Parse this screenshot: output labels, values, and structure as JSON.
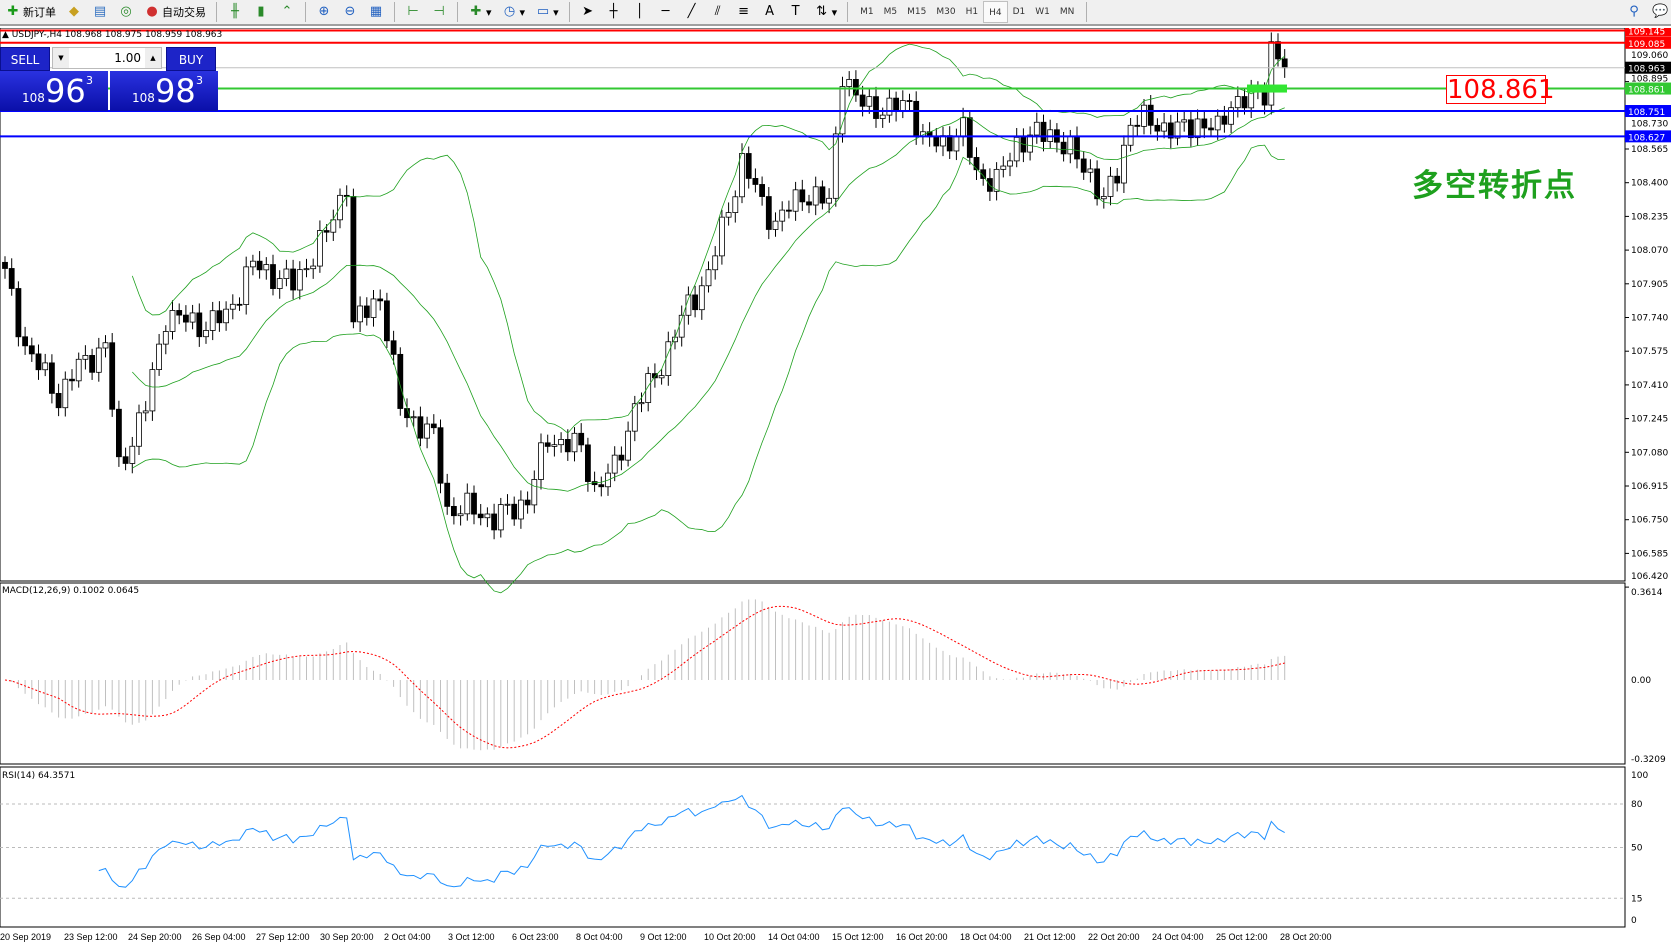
{
  "toolbar": {
    "new_order": "新订单",
    "auto_trading": "自动交易",
    "timeframes": [
      "M1",
      "M5",
      "M15",
      "M30",
      "H1",
      "H4",
      "D1",
      "W1",
      "MN"
    ],
    "active_timeframe": "H4"
  },
  "chart": {
    "symbol_header": "USDJPY-,H4  108.968 108.975 108.959 108.963",
    "annotation_price": "108.861",
    "annotation_text": "多空转折点"
  },
  "trade_panel": {
    "sell_label": "SELL",
    "buy_label": "BUY",
    "lot": "1.00",
    "sell_big": "108",
    "sell_main": "96",
    "sell_sup": "3",
    "buy_big": "108",
    "buy_main": "98",
    "buy_sup": "3"
  },
  "price_axis": {
    "ticks": [
      "108.565",
      "108.400",
      "108.235",
      "108.070",
      "107.905",
      "107.740",
      "107.575",
      "107.410",
      "107.245",
      "107.080",
      "106.915",
      "106.750",
      "106.585",
      "106.420"
    ],
    "top_ticks": [
      "109.060",
      "108.895",
      "108.730"
    ]
  },
  "levels": [
    {
      "price": "109.145",
      "color": "#ff0000"
    },
    {
      "price": "109.085",
      "color": "#ff0000"
    },
    {
      "price": "108.963",
      "color": "#000000",
      "line": "#c0c0c0"
    },
    {
      "price": "108.861",
      "color": "#32c832"
    },
    {
      "price": "108.751",
      "color": "#0000ff"
    },
    {
      "price": "108.627",
      "color": "#0000ff"
    }
  ],
  "macd": {
    "label": "MACD(12,26,9) 0.1002 0.0645",
    "ticks": [
      "0.3614",
      "0.00",
      "-0.3209"
    ]
  },
  "rsi": {
    "label": "RSI(14) 64.3571",
    "ticks": [
      "100",
      "80",
      "50",
      "15",
      "0"
    ]
  },
  "time_axis": [
    "20 Sep 2019",
    "23 Sep 12:00",
    "24 Sep 20:00",
    "26 Sep 04:00",
    "27 Sep 12:00",
    "30 Sep 20:00",
    "2 Oct 04:00",
    "3 Oct 12:00",
    "6 Oct 23:00",
    "8 Oct 04:00",
    "9 Oct 12:00",
    "10 Oct 20:00",
    "14 Oct 04:00",
    "15 Oct 12:00",
    "16 Oct 20:00",
    "18 Oct 04:00",
    "21 Oct 12:00",
    "22 Oct 20:00",
    "24 Oct 04:00",
    "25 Oct 12:00",
    "28 Oct 20:00"
  ],
  "chart_data": {
    "type": "candlestick",
    "symbol": "USDJPY",
    "timeframe": "H4",
    "close_path": [
      [
        0,
        107.95
      ],
      [
        3,
        107.6
      ],
      [
        8,
        107.35
      ],
      [
        11,
        107.5
      ],
      [
        15,
        107.6
      ],
      [
        17,
        107.0
      ],
      [
        21,
        107.3
      ],
      [
        24,
        107.75
      ],
      [
        30,
        107.7
      ],
      [
        33,
        107.75
      ],
      [
        37,
        108.0
      ],
      [
        43,
        107.9
      ],
      [
        48,
        108.15
      ],
      [
        51,
        108.4
      ],
      [
        52,
        107.7
      ],
      [
        56,
        107.85
      ],
      [
        59,
        107.3
      ],
      [
        64,
        107.15
      ],
      [
        66,
        106.8
      ],
      [
        70,
        106.8
      ],
      [
        73,
        106.75
      ],
      [
        78,
        106.85
      ],
      [
        81,
        107.15
      ],
      [
        86,
        107.1
      ],
      [
        88,
        106.9
      ],
      [
        91,
        107.0
      ],
      [
        94,
        107.3
      ],
      [
        97,
        107.45
      ],
      [
        102,
        107.8
      ],
      [
        105,
        107.95
      ],
      [
        110,
        108.5
      ],
      [
        113,
        108.3
      ],
      [
        115,
        108.2
      ],
      [
        119,
        108.35
      ],
      [
        123,
        108.3
      ],
      [
        125,
        108.95
      ],
      [
        127,
        108.8
      ],
      [
        132,
        108.75
      ],
      [
        135,
        108.8
      ],
      [
        137,
        108.6
      ],
      [
        140,
        108.6
      ],
      [
        143,
        108.65
      ],
      [
        145,
        108.45
      ],
      [
        148,
        108.4
      ],
      [
        151,
        108.6
      ],
      [
        156,
        108.65
      ],
      [
        159,
        108.55
      ],
      [
        162,
        108.45
      ],
      [
        164,
        108.3
      ],
      [
        166,
        108.45
      ],
      [
        168,
        108.7
      ],
      [
        171,
        108.7
      ],
      [
        175,
        108.65
      ],
      [
        178,
        108.7
      ],
      [
        181,
        108.65
      ],
      [
        183,
        108.8
      ],
      [
        186,
        108.8
      ],
      [
        188,
        108.85
      ],
      [
        189,
        109.07
      ],
      [
        191,
        108.963
      ]
    ],
    "colors": {
      "bollinger": "#1ea01e",
      "macd_hist": "#c0c0c0",
      "macd_signal": "#ff0000",
      "rsi": "#1e90ff"
    }
  }
}
